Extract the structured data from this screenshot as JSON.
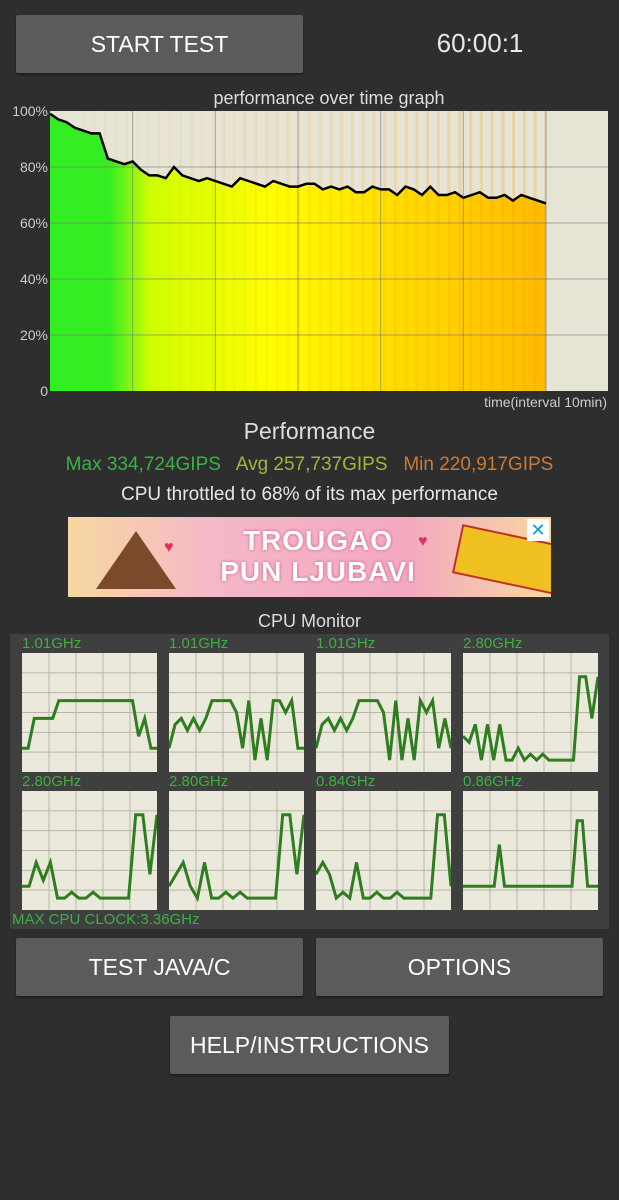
{
  "header": {
    "start_button": "START TEST",
    "timer": "60:00:1"
  },
  "graph": {
    "title": "performance over time graph",
    "y_ticks": [
      "100%",
      "80%",
      "60%",
      "40%",
      "20%",
      "0"
    ],
    "x_label": "time(interval 10min)"
  },
  "chart_data": {
    "type": "line",
    "title": "performance over time graph",
    "xlabel": "time(interval 10min)",
    "ylabel": "",
    "ylim": [
      0,
      100
    ],
    "xlim": [
      0,
      65
    ],
    "x_unit": "minutes",
    "grid": true,
    "x": [
      0,
      1,
      2,
      3,
      4,
      5,
      6,
      7,
      8,
      9,
      10,
      11,
      12,
      13,
      14,
      15,
      16,
      17,
      18,
      19,
      20,
      21,
      22,
      23,
      24,
      25,
      26,
      27,
      28,
      29,
      30,
      31,
      32,
      33,
      34,
      35,
      36,
      37,
      38,
      39,
      40,
      41,
      42,
      43,
      44,
      45,
      46,
      47,
      48,
      49,
      50,
      51,
      52,
      53,
      54,
      55,
      56,
      57,
      58,
      59,
      60
    ],
    "y": [
      99,
      97,
      96,
      94,
      93,
      92,
      92,
      83,
      82,
      81,
      82,
      79,
      77,
      77,
      76,
      80,
      77,
      76,
      75,
      76,
      75,
      74,
      73,
      76,
      75,
      74,
      73,
      75,
      74,
      73,
      73,
      74,
      74,
      72,
      73,
      72,
      73,
      71,
      71,
      73,
      72,
      72,
      70,
      73,
      72,
      70,
      73,
      70,
      70,
      71,
      69,
      70,
      71,
      69,
      69,
      70,
      68,
      70,
      69,
      68,
      67
    ],
    "colors": {
      "line": "#000000",
      "fill_start": "#33ee22",
      "fill_mid": "#ffff00",
      "fill_end": "#ffbb00",
      "background": "#e6e4d4"
    }
  },
  "performance": {
    "title": "Performance",
    "max": "Max 334,724GIPS",
    "avg": "Avg 257,737GIPS",
    "min": "Min 220,917GIPS",
    "throttle": "CPU throttled to 68% of its max performance",
    "colors": {
      "max": "#3cb043",
      "avg": "#9bb83a",
      "min": "#c87a3a"
    }
  },
  "ad": {
    "text_line1": "TROUGAO",
    "text_line2": "PUN LJUBAVI",
    "close_icon": "close-icon"
  },
  "cpu_monitor": {
    "title": "CPU Monitor",
    "max_clock": "MAX CPU CLOCK:3.36GHz",
    "cores": [
      {
        "freq": "1.01GHz",
        "load": [
          0.2,
          0.2,
          0.45,
          0.45,
          0.45,
          0.45,
          0.6,
          0.6,
          0.6,
          0.6,
          0.6,
          0.6,
          0.6,
          0.6,
          0.6,
          0.6,
          0.6,
          0.6,
          0.6,
          0.3,
          0.45,
          0.2,
          0.2
        ]
      },
      {
        "freq": "1.01GHz",
        "load": [
          0.2,
          0.4,
          0.45,
          0.35,
          0.45,
          0.35,
          0.45,
          0.6,
          0.6,
          0.6,
          0.6,
          0.5,
          0.2,
          0.6,
          0.1,
          0.45,
          0.1,
          0.6,
          0.6,
          0.5,
          0.6,
          0.2,
          0.2
        ]
      },
      {
        "freq": "1.01GHz",
        "load": [
          0.2,
          0.4,
          0.45,
          0.35,
          0.45,
          0.35,
          0.45,
          0.6,
          0.6,
          0.6,
          0.6,
          0.5,
          0.1,
          0.6,
          0.1,
          0.45,
          0.1,
          0.6,
          0.5,
          0.6,
          0.2,
          0.45,
          0.2
        ]
      },
      {
        "freq": "2.80GHz",
        "load": [
          0.3,
          0.25,
          0.4,
          0.1,
          0.4,
          0.1,
          0.4,
          0.1,
          0.1,
          0.2,
          0.1,
          0.15,
          0.1,
          0.15,
          0.1,
          0.1,
          0.1,
          0.1,
          0.1,
          0.8,
          0.8,
          0.45,
          0.8
        ]
      },
      {
        "freq": "2.80GHz",
        "load": [
          0.2,
          0.2,
          0.4,
          0.25,
          0.4,
          0.1,
          0.1,
          0.15,
          0.1,
          0.1,
          0.15,
          0.1,
          0.1,
          0.1,
          0.1,
          0.1,
          0.8,
          0.8,
          0.3,
          0.8
        ]
      },
      {
        "freq": "2.80GHz",
        "load": [
          0.2,
          0.3,
          0.4,
          0.2,
          0.1,
          0.4,
          0.1,
          0.1,
          0.15,
          0.1,
          0.15,
          0.1,
          0.1,
          0.1,
          0.1,
          0.1,
          0.8,
          0.8,
          0.3,
          0.8
        ]
      },
      {
        "freq": "0.84GHz",
        "load": [
          0.3,
          0.4,
          0.3,
          0.1,
          0.15,
          0.1,
          0.4,
          0.1,
          0.1,
          0.15,
          0.1,
          0.1,
          0.15,
          0.1,
          0.1,
          0.1,
          0.1,
          0.1,
          0.8,
          0.8,
          0.2
        ]
      },
      {
        "freq": "0.86GHz",
        "load": [
          0.2,
          0.2,
          0.2,
          0.2,
          0.2,
          0.2,
          0.2,
          0.55,
          0.2,
          0.2,
          0.2,
          0.2,
          0.2,
          0.2,
          0.2,
          0.2,
          0.2,
          0.2,
          0.2,
          0.2,
          0.2,
          0.2,
          0.75,
          0.75,
          0.2,
          0.2,
          0.2
        ]
      }
    ],
    "colors": {
      "line": "#2e7d1e",
      "background": "#ebe9dc",
      "grid": "#b8b6a8"
    }
  },
  "buttons": {
    "test_java_c": "TEST JAVA/C",
    "options": "OPTIONS",
    "help": "HELP/INSTRUCTIONS"
  }
}
